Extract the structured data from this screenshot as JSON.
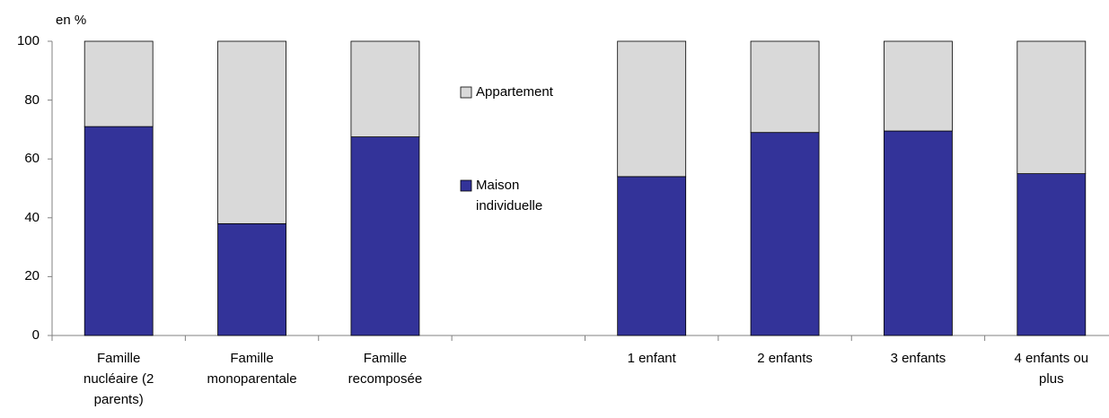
{
  "chart_data": {
    "type": "bar",
    "stacked": true,
    "y_unit_label": "en %",
    "categories": [
      "Famille nucléaire (2 parents)",
      "Famille monoparentale",
      "Famille recomposée",
      null,
      "1 enfant",
      "2 enfants",
      "3 enfants",
      "4 enfants ou plus"
    ],
    "series": [
      {
        "name": "Maison individuelle",
        "color": "#333399",
        "values": [
          71,
          38,
          67.5,
          null,
          54,
          69,
          69.5,
          55
        ]
      },
      {
        "name": "Appartement",
        "color": "#d9d9d9",
        "values": [
          29,
          62,
          32.5,
          null,
          46,
          31,
          30.5,
          45
        ]
      }
    ],
    "ylim": [
      0,
      100
    ],
    "yticks": [
      0,
      20,
      40,
      60,
      80,
      100
    ]
  }
}
